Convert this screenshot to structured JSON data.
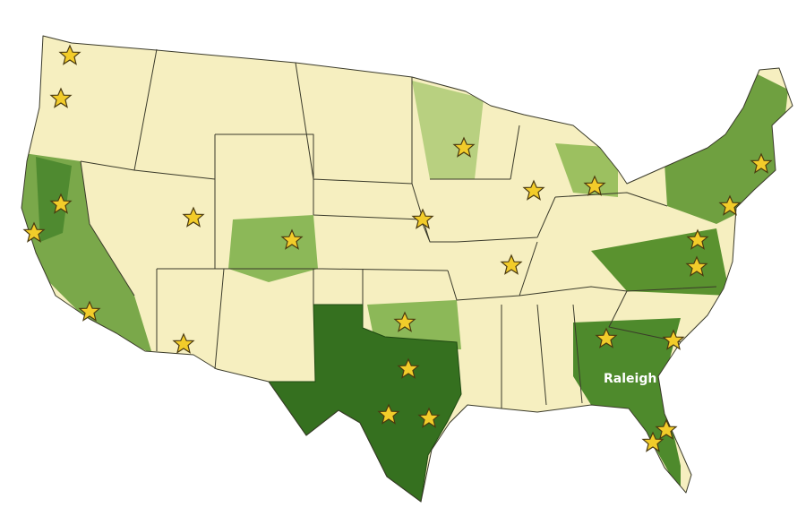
{
  "map": {
    "labels": [
      "Raleigh"
    ]
  }
}
